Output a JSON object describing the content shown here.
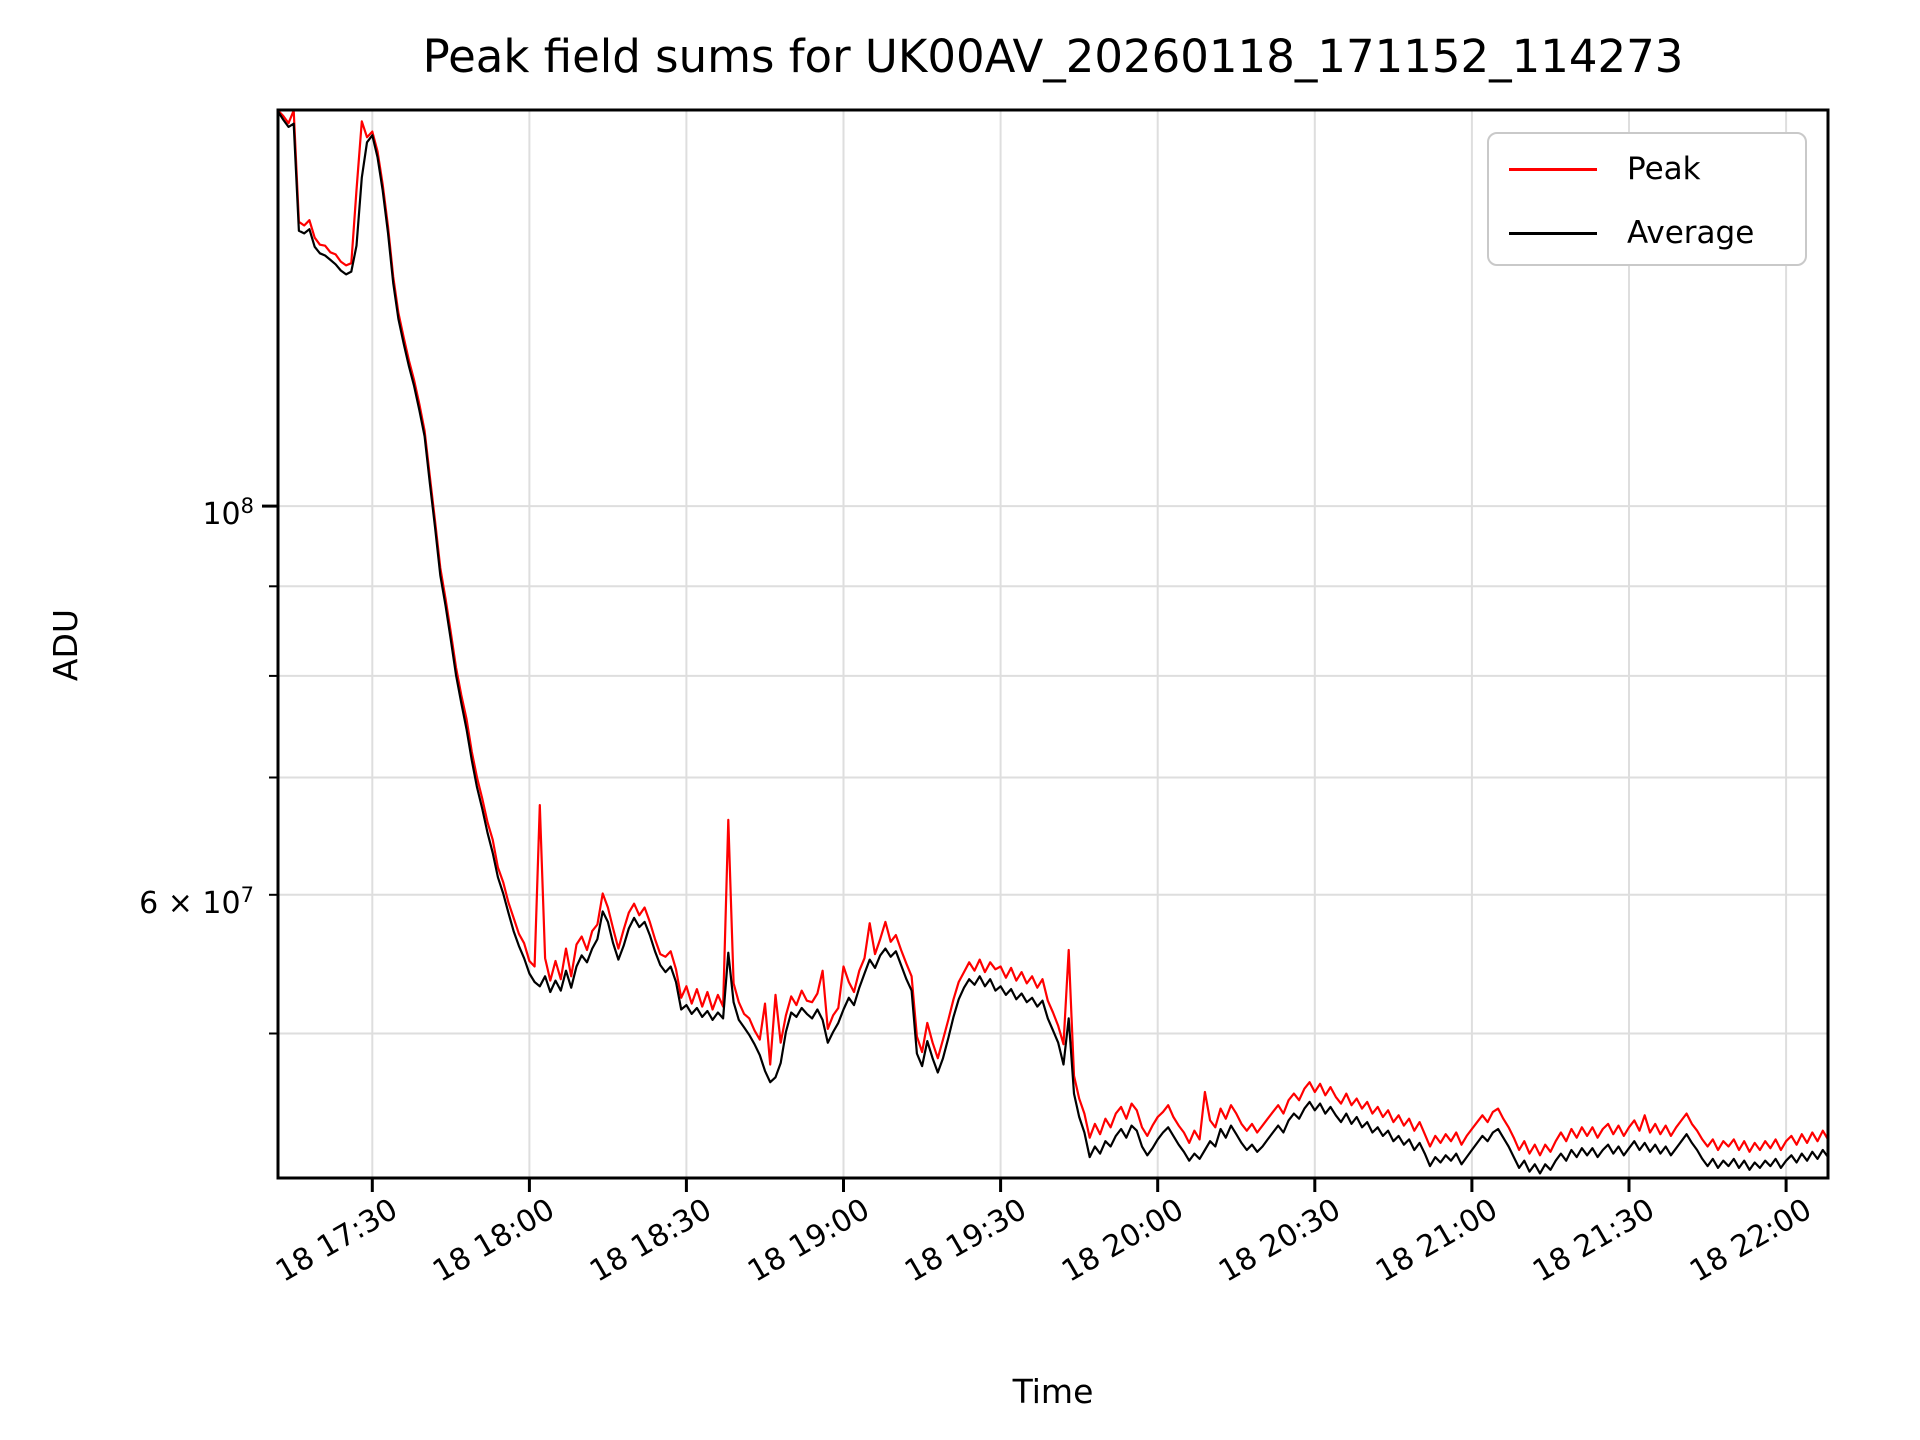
{
  "figure": {
    "background_color": "#ffffff",
    "spine_color": "#000000",
    "gridline_color": "#dedede"
  },
  "legend": {
    "items": [
      {
        "label": "Peak",
        "color": "#ff0000"
      },
      {
        "label": "Average",
        "color": "#000000"
      }
    ]
  },
  "chart_data": {
    "type": "line",
    "title": "Peak field sums for UK00AV_20260118_171152_114273",
    "xlabel": "Time",
    "ylabel": "ADU",
    "grid": true,
    "legend_position": "upper right",
    "x_axis": {
      "unit": "hour_of_day_on_day_18",
      "min": 17.2,
      "max": 22.1333,
      "ticks": [
        {
          "hour": 17.5,
          "label": "18 17:30"
        },
        {
          "hour": 18.0,
          "label": "18 18:00"
        },
        {
          "hour": 18.5,
          "label": "18 18:30"
        },
        {
          "hour": 19.0,
          "label": "18 19:00"
        },
        {
          "hour": 19.5,
          "label": "18 19:30"
        },
        {
          "hour": 20.0,
          "label": "18 20:00"
        },
        {
          "hour": 20.5,
          "label": "18 20:30"
        },
        {
          "hour": 21.0,
          "label": "18 21:00"
        },
        {
          "hour": 21.5,
          "label": "18 21:30"
        },
        {
          "hour": 22.0,
          "label": "18 22:00"
        }
      ]
    },
    "y_axis": {
      "scale": "log",
      "min": 41350000,
      "max": 168300000,
      "gridlines": [
        50000000,
        60000000,
        70000000,
        80000000,
        90000000,
        100000000
      ],
      "ticks": [
        {
          "value": 100000000,
          "prefix": "",
          "base": "10",
          "exp": "8"
        },
        {
          "value": 60000000,
          "prefix": "6 × ",
          "base": "10",
          "exp": "7"
        }
      ]
    },
    "series": [
      {
        "name": "Peak",
        "color": "#ff0000",
        "start_hour": 17.2,
        "step_minutes": 1,
        "values_millions_adu": [
          168.2,
          167,
          165.4,
          168.2,
          145.3,
          144.6,
          145.6,
          142.3,
          141,
          140.8,
          139.6,
          139.2,
          137.9,
          137.2,
          137.6,
          151.5,
          165.8,
          162.4,
          163.6,
          159.4,
          152.6,
          144.4,
          135.2,
          128.9,
          124.8,
          121.1,
          118,
          114.3,
          110.4,
          103.9,
          98,
          92.2,
          88.5,
          84.7,
          80.9,
          78,
          75.6,
          72.4,
          70,
          68.1,
          66,
          64.5,
          62.2,
          61,
          59.4,
          58.2,
          57,
          56.3,
          55,
          54.6,
          67.5,
          55.2,
          53.6,
          55,
          53.7,
          55.9,
          53.9,
          56.2,
          56.8,
          55.8,
          57.2,
          57.7,
          60.1,
          59,
          57.4,
          55.9,
          57.3,
          58.6,
          59.3,
          58.4,
          59,
          57.9,
          56.6,
          55.5,
          55.3,
          55.7,
          54.4,
          52.4,
          53.2,
          52,
          53,
          51.8,
          52.8,
          51.6,
          52.6,
          51.8,
          66.2,
          53.4,
          52.1,
          51.3,
          51,
          50.2,
          49.6,
          52,
          48,
          52.6,
          49.4,
          51.2,
          52.5,
          51.9,
          52.9,
          52.2,
          52.1,
          52.7,
          54.3,
          50.3,
          51.2,
          51.7,
          54.6,
          53.5,
          52.8,
          54.3,
          55.2,
          57.8,
          55.5,
          56.6,
          57.9,
          56.4,
          56.9,
          55.8,
          54.8,
          53.9,
          49.8,
          48.8,
          50.7,
          49.4,
          48.4,
          49.6,
          50.9,
          52.3,
          53.5,
          54.2,
          54.9,
          54.3,
          55.1,
          54.2,
          54.9,
          54.4,
          54.6,
          53.8,
          54.5,
          53.6,
          54.2,
          53.4,
          53.9,
          53.1,
          53.7,
          52.2,
          51.4,
          50.5,
          49.3,
          55.8,
          47.3,
          45.9,
          45,
          43.6,
          44.4,
          43.8,
          44.7,
          44.2,
          45,
          45.4,
          44.7,
          45.6,
          45.2,
          44.2,
          43.7,
          44.3,
          44.8,
          45.1,
          45.5,
          44.8,
          44.3,
          43.9,
          43.3,
          44,
          43.5,
          46.3,
          44.6,
          44.2,
          45.3,
          44.7,
          45.5,
          45,
          44.4,
          44,
          44.4,
          43.9,
          44.3,
          44.7,
          45.1,
          45.5,
          45,
          45.8,
          46.2,
          45.8,
          46.5,
          46.9,
          46.3,
          46.8,
          46.1,
          46.6,
          46,
          45.6,
          46.2,
          45.5,
          45.9,
          45.3,
          45.7,
          45,
          45.4,
          44.8,
          45.2,
          44.5,
          44.9,
          44.3,
          44.7,
          44,
          44.5,
          43.8,
          43.1,
          43.7,
          43.3,
          43.8,
          43.4,
          43.9,
          43.2,
          43.7,
          44.1,
          44.5,
          44.9,
          44.5,
          45.1,
          45.3,
          44.7,
          44.2,
          43.6,
          42.9,
          43.4,
          42.7,
          43.2,
          42.6,
          43.2,
          42.8,
          43.4,
          43.9,
          43.4,
          44.1,
          43.6,
          44.2,
          43.7,
          44.2,
          43.6,
          44.1,
          44.4,
          43.8,
          44.3,
          43.7,
          44.2,
          44.6,
          44,
          44.9,
          43.9,
          44.4,
          43.8,
          44.3,
          43.7,
          44.2,
          44.6,
          45,
          44.4,
          44,
          43.5,
          43.1,
          43.5,
          42.9,
          43.4,
          43.1,
          43.5,
          42.9,
          43.4,
          42.8,
          43.3,
          42.9,
          43.4,
          43,
          43.5,
          42.9,
          43.4,
          43.7,
          43.2,
          43.8,
          43.3,
          43.9,
          43.4,
          44,
          43.5
        ]
      },
      {
        "name": "Average",
        "color": "#000000",
        "start_hour": 17.2,
        "step_minutes": 1,
        "values_millions_adu": [
          168,
          166.2,
          164.6,
          165.3,
          143.6,
          143.1,
          143.9,
          140.6,
          139.4,
          139,
          138.2,
          137.4,
          136.3,
          135.6,
          136.1,
          140.8,
          154,
          161.3,
          162.8,
          158.2,
          151.4,
          143.2,
          134.1,
          127.9,
          123.8,
          120.2,
          117.1,
          113.4,
          109.6,
          103,
          97.2,
          91.3,
          87.7,
          83.9,
          80.1,
          77.2,
          74.6,
          71.6,
          69.1,
          67.2,
          65.1,
          63.4,
          61.4,
          60.1,
          58.6,
          57.2,
          56.1,
          55.2,
          54.1,
          53.5,
          53.2,
          53.9,
          52.8,
          53.6,
          52.9,
          54.3,
          53.1,
          54.6,
          55.4,
          54.9,
          55.9,
          56.6,
          58.7,
          57.9,
          56.3,
          55.1,
          56.1,
          57.4,
          58.2,
          57.5,
          57.9,
          56.9,
          55.7,
          54.7,
          54.2,
          54.6,
          53.5,
          51.6,
          51.9,
          51.3,
          51.7,
          51.1,
          51.5,
          50.9,
          51.4,
          51,
          55.6,
          52.1,
          50.9,
          50.4,
          49.9,
          49.3,
          48.6,
          47.6,
          46.9,
          47.2,
          48.1,
          50.1,
          51.4,
          51.1,
          51.7,
          51.3,
          51,
          51.6,
          50.9,
          49.4,
          50.1,
          50.7,
          51.6,
          52.4,
          51.9,
          53.1,
          54.1,
          55.1,
          54.5,
          55.4,
          55.9,
          55.3,
          55.7,
          54.7,
          53.7,
          52.9,
          48.7,
          47.9,
          49.5,
          48.4,
          47.5,
          48.4,
          49.7,
          51.1,
          52.3,
          53.1,
          53.7,
          53.3,
          53.9,
          53.2,
          53.7,
          52.9,
          53.2,
          52.6,
          53,
          52.3,
          52.7,
          52.1,
          52.4,
          51.8,
          52.2,
          51,
          50.2,
          49.4,
          48,
          51,
          46.2,
          44.8,
          43.9,
          42.5,
          43.1,
          42.7,
          43.4,
          43.1,
          43.7,
          44.1,
          43.6,
          44.3,
          44,
          43.1,
          42.6,
          43,
          43.5,
          43.9,
          44.2,
          43.7,
          43.2,
          42.8,
          42.3,
          42.7,
          42.4,
          42.9,
          43.4,
          43.1,
          44.1,
          43.6,
          44.3,
          43.8,
          43.3,
          42.9,
          43.2,
          42.8,
          43.1,
          43.5,
          43.9,
          44.3,
          43.9,
          44.6,
          45,
          44.7,
          45.3,
          45.7,
          45.2,
          45.6,
          45,
          45.4,
          44.9,
          44.5,
          45,
          44.4,
          44.8,
          44.2,
          44.5,
          43.9,
          44.2,
          43.7,
          44,
          43.4,
          43.7,
          43.2,
          43.5,
          42.9,
          43.3,
          42.7,
          42,
          42.5,
          42.2,
          42.6,
          42.3,
          42.7,
          42.1,
          42.5,
          42.9,
          43.3,
          43.7,
          43.4,
          43.9,
          44.1,
          43.6,
          43.1,
          42.5,
          41.9,
          42.3,
          41.7,
          42.1,
          41.6,
          42.1,
          41.8,
          42.3,
          42.7,
          42.3,
          42.9,
          42.5,
          43,
          42.6,
          43,
          42.5,
          42.9,
          43.2,
          42.7,
          43.1,
          42.6,
          43,
          43.4,
          42.9,
          43.3,
          42.8,
          43.2,
          42.7,
          43.1,
          42.6,
          43,
          43.4,
          43.8,
          43.3,
          42.9,
          42.4,
          42,
          42.4,
          41.9,
          42.3,
          42,
          42.4,
          41.9,
          42.3,
          41.8,
          42.2,
          41.9,
          42.3,
          42,
          42.4,
          41.9,
          42.3,
          42.6,
          42.2,
          42.7,
          42.3,
          42.8,
          42.4,
          42.9,
          42.5
        ]
      }
    ]
  }
}
